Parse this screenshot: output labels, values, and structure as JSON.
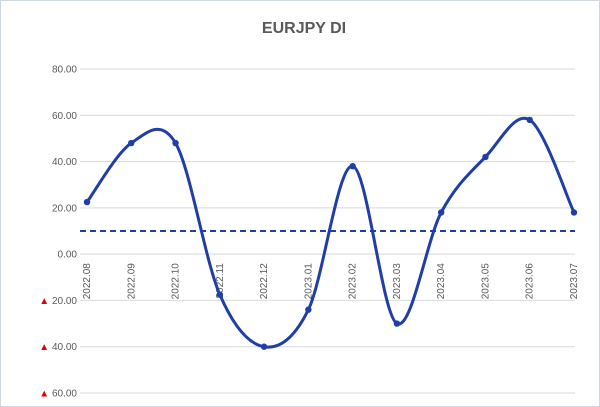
{
  "chart_data": {
    "type": "line",
    "title": "EURJPY DI",
    "xlabel": "",
    "ylabel": "",
    "ylim": [
      -60,
      80
    ],
    "grid": true,
    "legend": "none",
    "categories": [
      "2022.08",
      "2022.09",
      "2022.10",
      "2022.11",
      "2022.12",
      "2023.01",
      "2023.02",
      "2023.03",
      "2023.04",
      "2023.05",
      "2023.06",
      "2023.07"
    ],
    "series": [
      {
        "values": [
          22.5,
          48,
          48,
          -17.5,
          -40,
          -24,
          38,
          -30,
          18,
          42,
          58,
          18
        ]
      }
    ],
    "reference_line": 10,
    "y_tick_labels": [
      {
        "value": 80,
        "text": "80.00",
        "negative": false
      },
      {
        "value": 60,
        "text": "60.00",
        "negative": false
      },
      {
        "value": 40,
        "text": "40.00",
        "negative": false
      },
      {
        "value": 20,
        "text": "20.00",
        "negative": false
      },
      {
        "value": 0,
        "text": "0.00",
        "negative": false
      },
      {
        "value": -20,
        "text": "20.00",
        "negative": true
      },
      {
        "value": -40,
        "text": "40.00",
        "negative": true
      },
      {
        "value": -60,
        "text": "60.00",
        "negative": true
      }
    ],
    "negative_marker": "▲",
    "colors": {
      "line": "#1f3fa6",
      "reference": "#1f3fa6",
      "negative_marker": "#e00000",
      "grid": "#d9d9d9",
      "text": "#595959"
    }
  }
}
